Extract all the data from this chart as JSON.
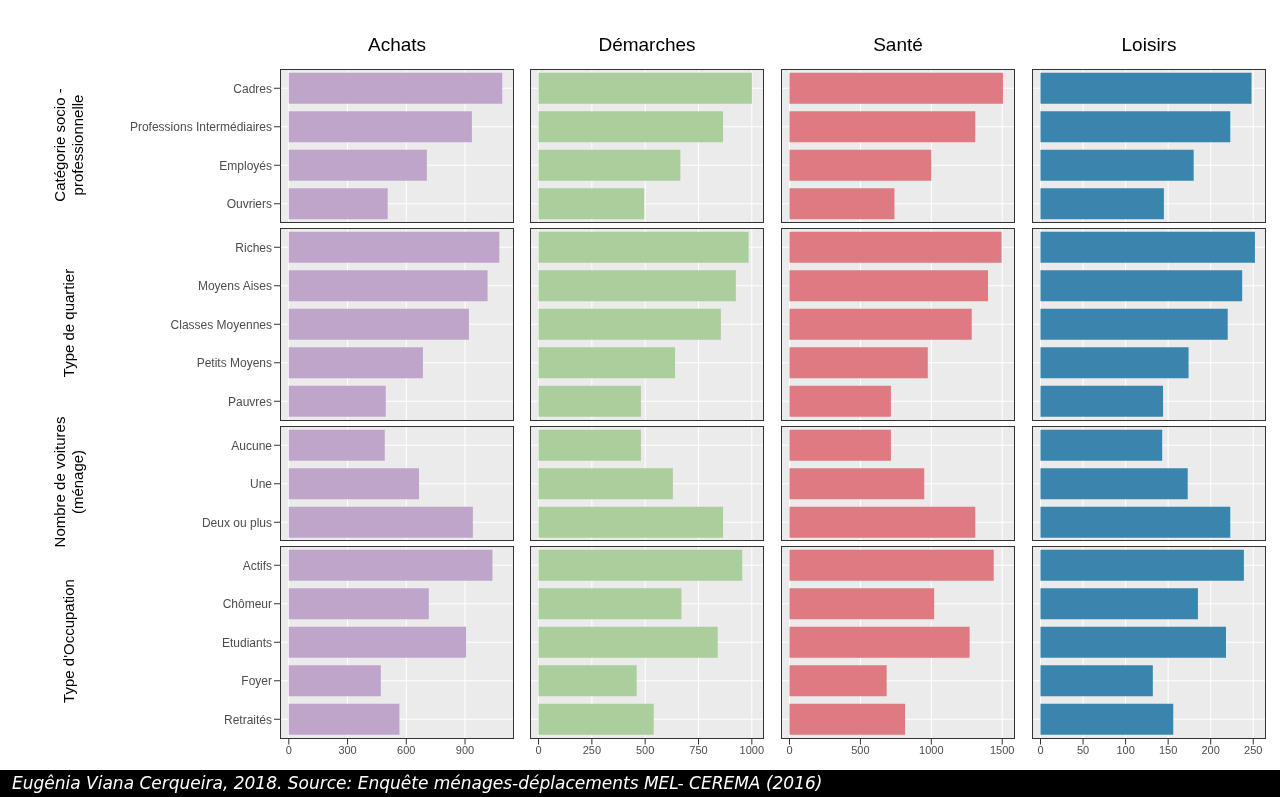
{
  "chart_data": [
    {
      "type": "bar",
      "orientation": "horizontal",
      "title": "Achats",
      "ylabel": "Catégorie socio -professionnelle",
      "categories": [
        "Cadres",
        "Professions Intermédiaires",
        "Employés",
        "Ouvriers"
      ],
      "values": [
        1090,
        935,
        705,
        505
      ],
      "color": "#c0a5cb",
      "xlim": [
        -45,
        1150
      ],
      "xticks": [
        0,
        300,
        600,
        900
      ],
      "grid": true,
      "tick_labels": "y"
    },
    {
      "type": "bar",
      "orientation": "horizontal",
      "title": "Démarches",
      "categories": [
        null,
        null,
        null,
        null
      ],
      "values": [
        1000,
        865,
        665,
        495
      ],
      "color": "#abce9d",
      "xlim": [
        -40,
        1057
      ],
      "xticks": [
        0,
        250,
        500,
        750,
        1000
      ],
      "grid": true,
      "tick_labels": false
    },
    {
      "type": "bar",
      "orientation": "horizontal",
      "title": "Santé",
      "categories": [
        null,
        null,
        null,
        null
      ],
      "values": [
        1505,
        1310,
        1000,
        740
      ],
      "color": "#de7a82",
      "xlim": [
        -60,
        1590
      ],
      "xticks": [
        0,
        500,
        1000,
        1500
      ],
      "grid": true,
      "tick_labels": false
    },
    {
      "type": "bar",
      "orientation": "horizontal",
      "title": "Loisirs",
      "categories": [
        null,
        null,
        null,
        null
      ],
      "values": [
        248,
        223,
        180,
        145
      ],
      "color": "#3a85ad",
      "xlim": [
        -10,
        265
      ],
      "xticks": [
        0,
        50,
        100,
        150,
        200,
        250
      ],
      "grid": true,
      "tick_labels": false
    },
    {
      "type": "bar",
      "orientation": "horizontal",
      "ylabel": "Type de quartier",
      "categories": [
        "Riches",
        "Moyens Aises",
        "Classes Moyennes",
        "Petits Moyens",
        "Pauvres"
      ],
      "values": [
        1075,
        1015,
        920,
        685,
        495
      ],
      "color": "#c0a5cb",
      "xlim": [
        -45,
        1150
      ],
      "xticks": [
        0,
        300,
        600,
        900
      ],
      "grid": true,
      "tick_labels": "y"
    },
    {
      "type": "bar",
      "orientation": "horizontal",
      "categories": [
        null,
        null,
        null,
        null,
        null
      ],
      "values": [
        985,
        925,
        855,
        640,
        480
      ],
      "color": "#abce9d",
      "xlim": [
        -40,
        1057
      ],
      "xticks": [
        0,
        250,
        500,
        750,
        1000
      ],
      "grid": true,
      "tick_labels": false
    },
    {
      "type": "bar",
      "orientation": "horizontal",
      "categories": [
        null,
        null,
        null,
        null,
        null
      ],
      "values": [
        1495,
        1400,
        1285,
        975,
        715
      ],
      "color": "#de7a82",
      "xlim": [
        -60,
        1590
      ],
      "xticks": [
        0,
        500,
        1000,
        1500
      ],
      "grid": true,
      "tick_labels": false
    },
    {
      "type": "bar",
      "orientation": "horizontal",
      "categories": [
        null,
        null,
        null,
        null,
        null
      ],
      "values": [
        252,
        237,
        220,
        174,
        144
      ],
      "color": "#3a85ad",
      "xlim": [
        -10,
        265
      ],
      "xticks": [
        0,
        50,
        100,
        150,
        200,
        250
      ],
      "grid": true,
      "tick_labels": false
    },
    {
      "type": "bar",
      "orientation": "horizontal",
      "ylabel": "Nombre de voitures (ménage)",
      "categories": [
        "Aucune",
        "Une",
        "Deux ou plus"
      ],
      "values": [
        490,
        665,
        940
      ],
      "color": "#c0a5cb",
      "xlim": [
        -45,
        1150
      ],
      "xticks": [
        0,
        300,
        600,
        900
      ],
      "grid": true,
      "tick_labels": "y"
    },
    {
      "type": "bar",
      "orientation": "horizontal",
      "categories": [
        null,
        null,
        null
      ],
      "values": [
        480,
        630,
        865
      ],
      "color": "#abce9d",
      "xlim": [
        -40,
        1057
      ],
      "xticks": [
        0,
        250,
        500,
        750,
        1000
      ],
      "grid": true,
      "tick_labels": false
    },
    {
      "type": "bar",
      "orientation": "horizontal",
      "categories": [
        null,
        null,
        null
      ],
      "values": [
        715,
        950,
        1310
      ],
      "color": "#de7a82",
      "xlim": [
        -60,
        1590
      ],
      "xticks": [
        0,
        500,
        1000,
        1500
      ],
      "grid": true,
      "tick_labels": false
    },
    {
      "type": "bar",
      "orientation": "horizontal",
      "categories": [
        null,
        null,
        null
      ],
      "values": [
        143,
        173,
        223
      ],
      "color": "#3a85ad",
      "xlim": [
        -10,
        265
      ],
      "xticks": [
        0,
        50,
        100,
        150,
        200,
        250
      ],
      "grid": true,
      "tick_labels": false
    },
    {
      "type": "bar",
      "orientation": "horizontal",
      "ylabel": "Type d'Occupation",
      "categories": [
        "Actifs",
        "Chômeur",
        "Etudiants",
        "Foyer",
        "Retraités"
      ],
      "values": [
        1040,
        715,
        905,
        470,
        565
      ],
      "color": "#c0a5cb",
      "xlim": [
        -45,
        1150
      ],
      "xticks": [
        0,
        300,
        600,
        900
      ],
      "grid": true
    },
    {
      "type": "bar",
      "orientation": "horizontal",
      "categories": [
        null,
        null,
        null,
        null,
        null
      ],
      "values": [
        955,
        670,
        840,
        460,
        540
      ],
      "color": "#abce9d",
      "xlim": [
        -40,
        1057
      ],
      "xticks": [
        0,
        250,
        500,
        750,
        1000
      ],
      "grid": true,
      "tick_labels": "x"
    },
    {
      "type": "bar",
      "orientation": "horizontal",
      "categories": [
        null,
        null,
        null,
        null,
        null
      ],
      "values": [
        1440,
        1020,
        1270,
        685,
        815
      ],
      "color": "#de7a82",
      "xlim": [
        -60,
        1590
      ],
      "xticks": [
        0,
        500,
        1000,
        1500
      ],
      "grid": true,
      "tick_labels": "x"
    },
    {
      "type": "bar",
      "orientation": "horizontal",
      "categories": [
        null,
        null,
        null,
        null,
        null
      ],
      "values": [
        239,
        185,
        218,
        132,
        156
      ],
      "color": "#3a85ad",
      "xlim": [
        -10,
        265
      ],
      "xticks": [
        0,
        50,
        100,
        150,
        200,
        250
      ],
      "grid": true,
      "tick_labels": "x",
      "annotations": [
        "Eugênia Viana Cerqueira, 2018. Source: Enquête ménages-déplacements MEL- CEREMA (2016)"
      ]
    }
  ]
}
